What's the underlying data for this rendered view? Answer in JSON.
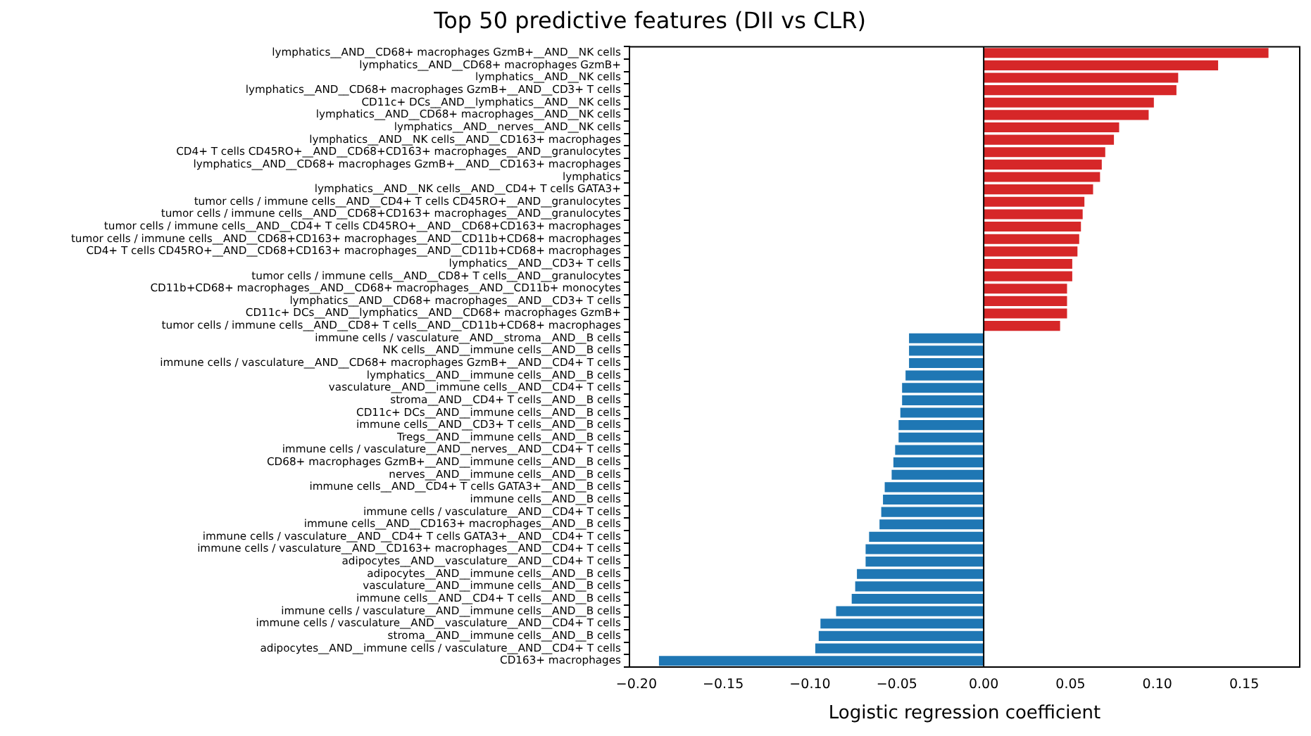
{
  "chart_data": {
    "type": "bar",
    "orientation": "horizontal",
    "title": "Top 50 predictive features (DII vs CLR)",
    "xlabel": "Logistic regression coefficient",
    "categories": [
      "lymphatics__AND__CD68+ macrophages GzmB+__AND__NK cells",
      "lymphatics__AND__CD68+ macrophages GzmB+",
      "lymphatics__AND__NK cells",
      "lymphatics__AND__CD68+ macrophages GzmB+__AND__CD3+ T cells",
      "CD11c+ DCs__AND__lymphatics__AND__NK cells",
      "lymphatics__AND__CD68+ macrophages__AND__NK cells",
      "lymphatics__AND__nerves__AND__NK cells",
      "lymphatics__AND__NK cells__AND__CD163+ macrophages",
      "CD4+ T cells CD45RO+__AND__CD68+CD163+ macrophages__AND__granulocytes",
      "lymphatics__AND__CD68+ macrophages GzmB+__AND__CD163+ macrophages",
      "lymphatics",
      "lymphatics__AND__NK cells__AND__CD4+ T cells GATA3+",
      "tumor cells / immune cells__AND__CD4+ T cells CD45RO+__AND__granulocytes",
      "tumor cells / immune cells__AND__CD68+CD163+ macrophages__AND__granulocytes",
      "tumor cells / immune cells__AND__CD4+ T cells CD45RO+__AND__CD68+CD163+ macrophages",
      "tumor cells / immune cells__AND__CD68+CD163+ macrophages__AND__CD11b+CD68+ macrophages",
      "CD4+ T cells CD45RO+__AND__CD68+CD163+ macrophages__AND__CD11b+CD68+ macrophages",
      "lymphatics__AND__CD3+ T cells",
      "tumor cells / immune cells__AND__CD8+ T cells__AND__granulocytes",
      "CD11b+CD68+ macrophages__AND__CD68+ macrophages__AND__CD11b+ monocytes",
      "lymphatics__AND__CD68+ macrophages__AND__CD3+ T cells",
      "CD11c+ DCs__AND__lymphatics__AND__CD68+ macrophages GzmB+",
      "tumor cells / immune cells__AND__CD8+ T cells__AND__CD11b+CD68+ macrophages",
      "immune cells / vasculature__AND__stroma__AND__B cells",
      "NK cells__AND__immune cells__AND__B cells",
      "immune cells / vasculature__AND__CD68+ macrophages GzmB+__AND__CD4+ T cells",
      "lymphatics__AND__immune cells__AND__B cells",
      "vasculature__AND__immune cells__AND__CD4+ T cells",
      "stroma__AND__CD4+ T cells__AND__B cells",
      "CD11c+ DCs__AND__immune cells__AND__B cells",
      "immune cells__AND__CD3+ T cells__AND__B cells",
      "Tregs__AND__immune cells__AND__B cells",
      "immune cells / vasculature__AND__nerves__AND__CD4+ T cells",
      "CD68+ macrophages GzmB+__AND__immune cells__AND__B cells",
      "nerves__AND__immune cells__AND__B cells",
      "immune cells__AND__CD4+ T cells GATA3+__AND__B cells",
      "immune cells__AND__B cells",
      "immune cells / vasculature__AND__CD4+ T cells",
      "immune cells__AND__CD163+ macrophages__AND__B cells",
      "immune cells / vasculature__AND__CD4+ T cells GATA3+__AND__CD4+ T cells",
      "immune cells / vasculature__AND__CD163+ macrophages__AND__CD4+ T cells",
      "adipocytes__AND__vasculature__AND__CD4+ T cells",
      "adipocytes__AND__immune cells__AND__B cells",
      "vasculature__AND__immune cells__AND__B cells",
      "immune cells__AND__CD4+ T cells__AND__B cells",
      "immune cells / vasculature__AND__immune cells__AND__B cells",
      "immune cells / vasculature__AND__vasculature__AND__CD4+ T cells",
      "stroma__AND__immune cells__AND__B cells",
      "adipocytes__AND__immune cells / vasculature__AND__CD4+ T cells",
      "CD163+ macrophages"
    ],
    "values": [
      0.164,
      0.135,
      0.112,
      0.111,
      0.098,
      0.095,
      0.078,
      0.075,
      0.07,
      0.068,
      0.067,
      0.063,
      0.058,
      0.057,
      0.056,
      0.055,
      0.054,
      0.051,
      0.051,
      0.048,
      0.048,
      0.048,
      0.044,
      -0.043,
      -0.043,
      -0.043,
      -0.045,
      -0.047,
      -0.047,
      -0.048,
      -0.049,
      -0.049,
      -0.051,
      -0.052,
      -0.053,
      -0.057,
      -0.058,
      -0.059,
      -0.06,
      -0.066,
      -0.068,
      -0.068,
      -0.073,
      -0.074,
      -0.076,
      -0.085,
      -0.094,
      -0.095,
      -0.097,
      -0.187
    ],
    "colors": [
      "#d62728",
      "#d62728",
      "#d62728",
      "#d62728",
      "#d62728",
      "#d62728",
      "#d62728",
      "#d62728",
      "#d62728",
      "#d62728",
      "#d62728",
      "#d62728",
      "#d62728",
      "#d62728",
      "#d62728",
      "#d62728",
      "#d62728",
      "#d62728",
      "#d62728",
      "#d62728",
      "#d62728",
      "#d62728",
      "#d62728",
      "#1f77b4",
      "#1f77b4",
      "#1f77b4",
      "#1f77b4",
      "#1f77b4",
      "#1f77b4",
      "#1f77b4",
      "#1f77b4",
      "#1f77b4",
      "#1f77b4",
      "#1f77b4",
      "#1f77b4",
      "#1f77b4",
      "#1f77b4",
      "#1f77b4",
      "#1f77b4",
      "#1f77b4",
      "#1f77b4",
      "#1f77b4",
      "#1f77b4",
      "#1f77b4",
      "#1f77b4",
      "#1f77b4",
      "#1f77b4",
      "#1f77b4",
      "#1f77b4",
      "#1f77b4"
    ],
    "xlim": [
      -0.204,
      0.182
    ],
    "xticks": [
      {
        "value": -0.2,
        "label": "−0.20"
      },
      {
        "value": -0.15,
        "label": "−0.15"
      },
      {
        "value": -0.1,
        "label": "−0.10"
      },
      {
        "value": -0.05,
        "label": "−0.05"
      },
      {
        "value": 0,
        "label": "0.00"
      },
      {
        "value": 0.05,
        "label": "0.05"
      },
      {
        "value": 0.1,
        "label": "0.10"
      },
      {
        "value": 0.15,
        "label": "0.15"
      }
    ],
    "ref_lines": [
      {
        "axis": "x",
        "value": 0,
        "color": "#000000"
      }
    ],
    "grid": false,
    "legend": false
  }
}
